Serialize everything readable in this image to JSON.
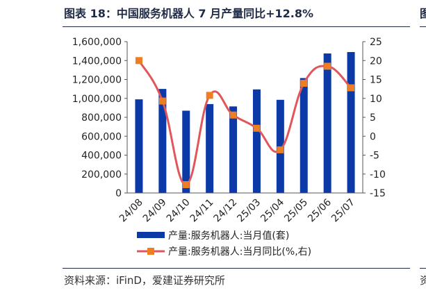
{
  "figure_title": "图表 18：中国服务机器人 7 月产量同比+12.8%",
  "next_figure_title_fragment": "图",
  "source_note": "资料来源：iFinD，爱建证券研究所",
  "next_source_fragment": "资",
  "chart_data": {
    "type": "bar",
    "categories": [
      "24/08",
      "24/09",
      "24/10",
      "24/11",
      "24/12",
      "25/03",
      "25/04",
      "25/05",
      "25/06",
      "25/07"
    ],
    "series": [
      {
        "name": "产量:服务机器人:当月值(套)",
        "type": "bar",
        "axis": "left",
        "color": "#0b3aa6",
        "values": [
          990000,
          1100000,
          870000,
          940000,
          915000,
          1095000,
          985000,
          1215000,
          1475000,
          1490000
        ]
      },
      {
        "name": "产量:服务机器人:当月同比(%,右)",
        "type": "line",
        "axis": "right",
        "line_color": "#e0565a",
        "marker_color": "#ef7d22",
        "values": [
          20.0,
          9.3,
          -12.8,
          10.8,
          5.6,
          2.1,
          -3.6,
          14.0,
          18.5,
          12.8
        ]
      }
    ],
    "y_left": {
      "min": 0,
      "max": 1600000,
      "ticks": [
        "0",
        "200,000",
        "400,000",
        "600,000",
        "800,000",
        "1,000,000",
        "1,200,000",
        "1,400,000",
        "1,600,000"
      ]
    },
    "y_right": {
      "min": -15,
      "max": 25,
      "ticks": [
        "-15",
        "-10",
        "-5",
        "0",
        "5",
        "10",
        "15",
        "20",
        "25"
      ]
    },
    "grid": false,
    "legend_position": "bottom"
  }
}
